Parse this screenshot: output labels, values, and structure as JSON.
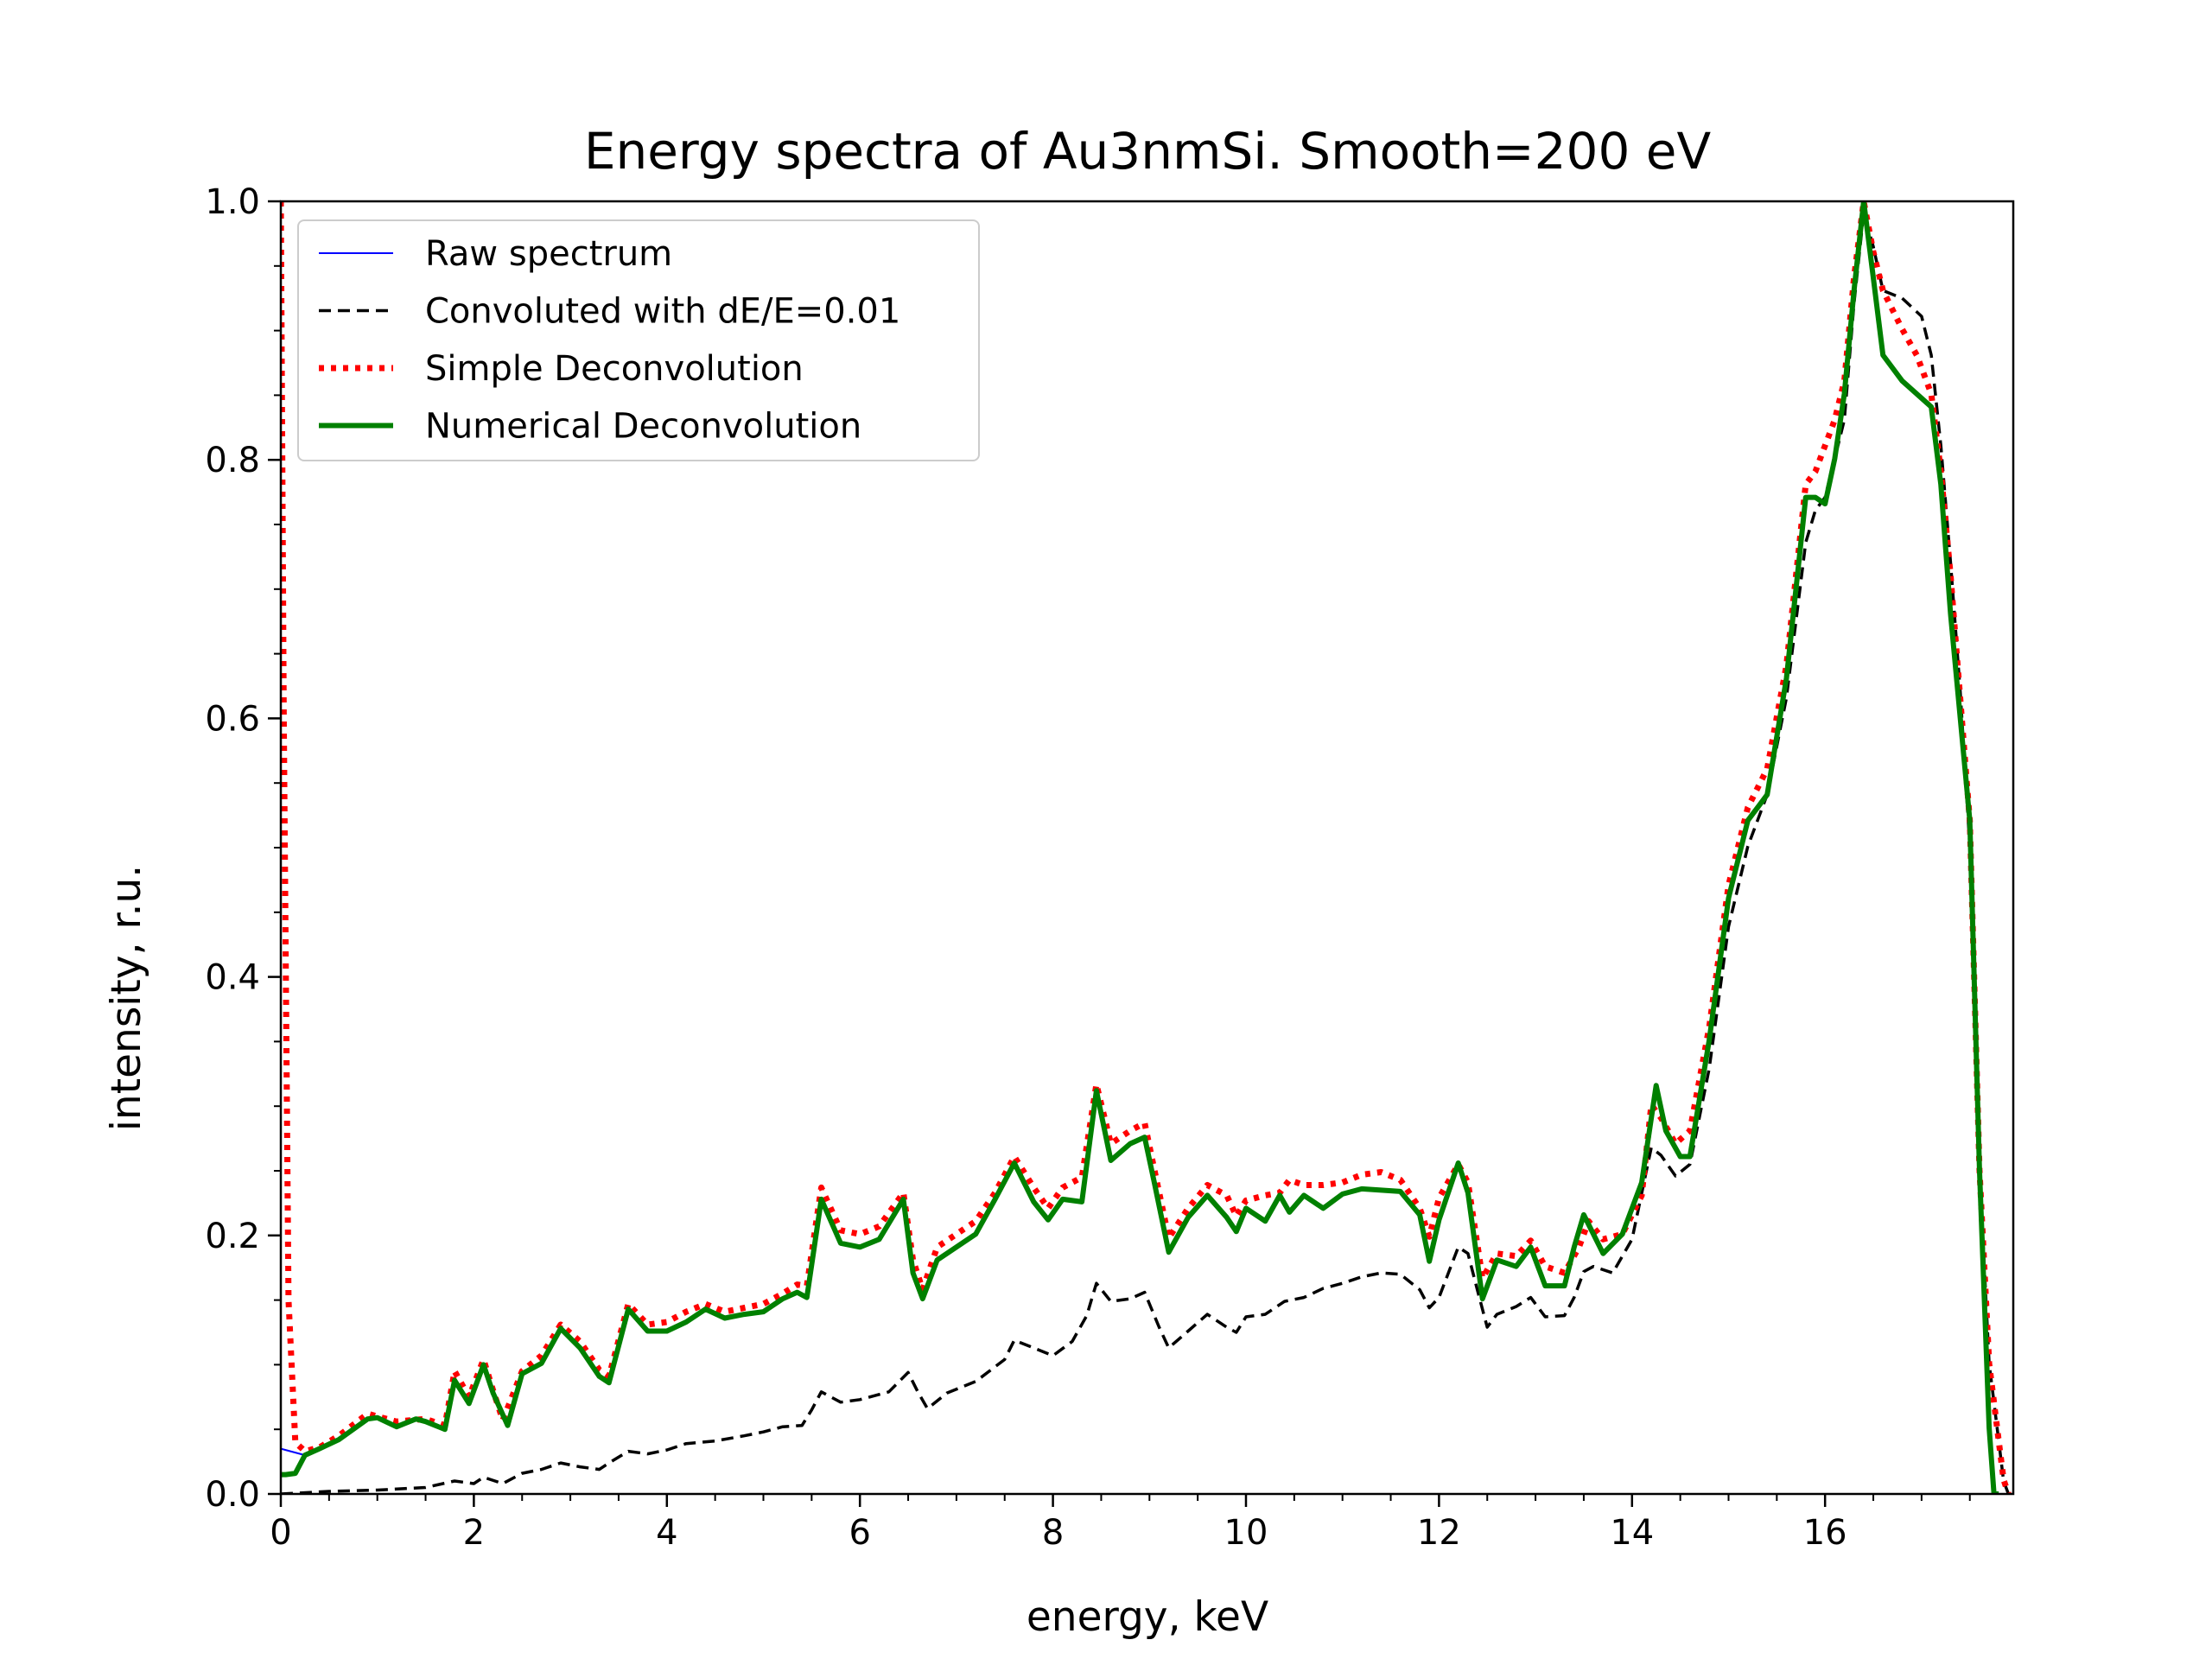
{
  "chart_data": {
    "type": "line",
    "title": "Energy spectra of Au3nmSi. Smooth=200 eV",
    "xlabel": "energy, keV",
    "ylabel": "intensity, r.u.",
    "xlim": [
      0,
      17.95
    ],
    "ylim": [
      0,
      1.0
    ],
    "xticks": [
      0,
      2,
      4,
      6,
      8,
      10,
      12,
      14,
      16
    ],
    "xtick_labels": [
      "0",
      "2",
      "4",
      "6",
      "8",
      "10",
      "12",
      "14",
      "16"
    ],
    "yticks": [
      0.0,
      0.2,
      0.4,
      0.6,
      0.8,
      1.0
    ],
    "ytick_labels": [
      "0.0",
      "0.2",
      "0.4",
      "0.6",
      "0.8",
      "1.0"
    ],
    "grid": false,
    "legend_position": "top-left",
    "colors": {
      "raw": "#0000ff",
      "convoluted": "#000000",
      "simple": "#ff0000",
      "numerical": "#008000"
    },
    "series": [
      {
        "name": "Raw spectrum",
        "style": "solid-thin",
        "color": "#0000ff",
        "x": [
          0,
          0.05,
          0.15,
          0.25
        ],
        "y": [
          0.035,
          0.034,
          0.032,
          0.03
        ]
      },
      {
        "name": "Convoluted with dE/E=0.01",
        "style": "dashed",
        "color": "#000000",
        "x": [
          0,
          0.5,
          1.0,
          1.5,
          1.8,
          2.0,
          2.1,
          2.3,
          2.5,
          2.7,
          2.9,
          3.1,
          3.3,
          3.4,
          3.6,
          3.8,
          4.0,
          4.2,
          4.5,
          4.8,
          5.0,
          5.2,
          5.4,
          5.5,
          5.6,
          5.8,
          6.0,
          6.3,
          6.5,
          6.6,
          6.7,
          6.9,
          7.2,
          7.5,
          7.6,
          7.8,
          8.0,
          8.2,
          8.35,
          8.45,
          8.6,
          8.8,
          8.95,
          9.1,
          9.2,
          9.4,
          9.6,
          9.8,
          9.9,
          10.0,
          10.2,
          10.4,
          10.6,
          10.8,
          11.0,
          11.2,
          11.4,
          11.6,
          11.8,
          11.9,
          12.0,
          12.2,
          12.3,
          12.4,
          12.5,
          12.6,
          12.8,
          12.95,
          13.1,
          13.3,
          13.4,
          13.5,
          13.6,
          13.8,
          14.0,
          14.2,
          14.3,
          14.45,
          14.6,
          14.8,
          15.0,
          15.2,
          15.4,
          15.6,
          15.8,
          15.9,
          16.0,
          16.1,
          16.2,
          16.3,
          16.4,
          16.5,
          16.6,
          16.8,
          17.0,
          17.1,
          17.2,
          17.3,
          17.4,
          17.5,
          17.6,
          17.7,
          17.8,
          17.85,
          17.9
        ],
        "y": [
          0.0,
          0.002,
          0.003,
          0.005,
          0.01,
          0.008,
          0.013,
          0.008,
          0.016,
          0.019,
          0.024,
          0.021,
          0.019,
          0.024,
          0.033,
          0.031,
          0.034,
          0.039,
          0.041,
          0.045,
          0.048,
          0.052,
          0.053,
          0.065,
          0.079,
          0.071,
          0.073,
          0.079,
          0.094,
          0.079,
          0.066,
          0.078,
          0.087,
          0.104,
          0.119,
          0.113,
          0.107,
          0.118,
          0.138,
          0.163,
          0.149,
          0.151,
          0.156,
          0.129,
          0.113,
          0.126,
          0.139,
          0.129,
          0.125,
          0.137,
          0.139,
          0.149,
          0.152,
          0.159,
          0.163,
          0.168,
          0.171,
          0.17,
          0.158,
          0.144,
          0.152,
          0.191,
          0.186,
          0.157,
          0.129,
          0.139,
          0.145,
          0.152,
          0.137,
          0.138,
          0.152,
          0.172,
          0.176,
          0.171,
          0.197,
          0.268,
          0.262,
          0.246,
          0.255,
          0.329,
          0.439,
          0.501,
          0.541,
          0.616,
          0.736,
          0.761,
          0.771,
          0.801,
          0.831,
          0.921,
          0.991,
          0.965,
          0.931,
          0.925,
          0.911,
          0.881,
          0.811,
          0.721,
          0.621,
          0.501,
          0.251,
          0.101,
          0.041,
          0.01,
          0.0
        ]
      },
      {
        "name": "Simple Deconvolution",
        "style": "dotted",
        "color": "#ff0000",
        "x": [
          0.0,
          0.03,
          0.08,
          0.15,
          0.25,
          0.4,
          0.6,
          0.9,
          1.2,
          1.5,
          1.7,
          1.8,
          1.95,
          2.1,
          2.2,
          2.3,
          2.5,
          2.7,
          2.9,
          3.1,
          3.3,
          3.4,
          3.6,
          3.8,
          4.0,
          4.2,
          4.4,
          4.6,
          4.8,
          5.0,
          5.2,
          5.35,
          5.45,
          5.6,
          5.8,
          6.0,
          6.2,
          6.45,
          6.55,
          6.65,
          6.8,
          7.0,
          7.2,
          7.4,
          7.6,
          7.8,
          7.95,
          8.1,
          8.3,
          8.45,
          8.6,
          8.8,
          8.95,
          9.05,
          9.2,
          9.4,
          9.6,
          9.8,
          9.9,
          10.0,
          10.2,
          10.35,
          10.45,
          10.6,
          10.8,
          11.0,
          11.2,
          11.4,
          11.6,
          11.8,
          11.9,
          12.0,
          12.2,
          12.3,
          12.45,
          12.6,
          12.8,
          12.95,
          13.1,
          13.3,
          13.45,
          13.55,
          13.7,
          13.9,
          14.1,
          14.2,
          14.3,
          14.45,
          14.6,
          14.8,
          15.0,
          15.2,
          15.4,
          15.6,
          15.8,
          15.9,
          16.0,
          16.1,
          16.2,
          16.3,
          16.4,
          16.5,
          16.6,
          16.8,
          16.95,
          17.1,
          17.2,
          17.3,
          17.5,
          17.6,
          17.7,
          17.8,
          17.85,
          17.9
        ],
        "y": [
          1.0,
          0.6,
          0.15,
          0.04,
          0.033,
          0.036,
          0.045,
          0.062,
          0.056,
          0.058,
          0.053,
          0.095,
          0.075,
          0.104,
          0.08,
          0.057,
          0.095,
          0.107,
          0.131,
          0.118,
          0.096,
          0.091,
          0.147,
          0.131,
          0.133,
          0.141,
          0.147,
          0.141,
          0.144,
          0.147,
          0.155,
          0.162,
          0.161,
          0.237,
          0.204,
          0.201,
          0.207,
          0.233,
          0.181,
          0.158,
          0.191,
          0.201,
          0.211,
          0.233,
          0.261,
          0.237,
          0.221,
          0.237,
          0.245,
          0.317,
          0.271,
          0.281,
          0.287,
          0.251,
          0.198,
          0.221,
          0.239,
          0.231,
          0.215,
          0.227,
          0.231,
          0.233,
          0.243,
          0.239,
          0.239,
          0.241,
          0.247,
          0.249,
          0.243,
          0.221,
          0.199,
          0.229,
          0.255,
          0.241,
          0.167,
          0.186,
          0.184,
          0.196,
          0.176,
          0.171,
          0.191,
          0.211,
          0.197,
          0.201,
          0.231,
          0.301,
          0.291,
          0.271,
          0.281,
          0.361,
          0.471,
          0.531,
          0.561,
          0.641,
          0.781,
          0.791,
          0.811,
          0.831,
          0.861,
          0.941,
          1.0,
          0.961,
          0.931,
          0.901,
          0.881,
          0.851,
          0.791,
          0.711,
          0.521,
          0.251,
          0.101,
          0.041,
          0.011,
          0.0
        ]
      },
      {
        "name": "Numerical Deconvolution",
        "style": "solid-thick",
        "color": "#008000",
        "x": [
          0.0,
          0.05,
          0.15,
          0.25,
          0.4,
          0.6,
          0.9,
          1.0,
          1.2,
          1.4,
          1.5,
          1.6,
          1.7,
          1.8,
          1.95,
          2.1,
          2.2,
          2.35,
          2.5,
          2.7,
          2.9,
          3.1,
          3.3,
          3.4,
          3.6,
          3.8,
          4.0,
          4.2,
          4.4,
          4.6,
          4.8,
          5.0,
          5.2,
          5.35,
          5.45,
          5.6,
          5.8,
          6.0,
          6.2,
          6.45,
          6.55,
          6.65,
          6.8,
          7.0,
          7.2,
          7.4,
          7.6,
          7.8,
          7.95,
          8.1,
          8.3,
          8.45,
          8.6,
          8.8,
          8.95,
          9.05,
          9.2,
          9.4,
          9.6,
          9.8,
          9.9,
          10.0,
          10.2,
          10.35,
          10.45,
          10.6,
          10.8,
          11.0,
          11.2,
          11.4,
          11.6,
          11.8,
          11.9,
          12.0,
          12.2,
          12.3,
          12.45,
          12.6,
          12.8,
          12.95,
          13.1,
          13.3,
          13.4,
          13.5,
          13.7,
          13.9,
          14.1,
          14.25,
          14.35,
          14.5,
          14.6,
          14.8,
          15.0,
          15.2,
          15.4,
          15.6,
          15.8,
          15.9,
          16.0,
          16.1,
          16.2,
          16.3,
          16.4,
          16.5,
          16.6,
          16.8,
          16.95,
          17.1,
          17.2,
          17.3,
          17.5,
          17.6,
          17.7,
          17.75,
          17.8
        ],
        "y": [
          0.015,
          0.015,
          0.016,
          0.03,
          0.035,
          0.042,
          0.058,
          0.059,
          0.052,
          0.058,
          0.056,
          0.053,
          0.05,
          0.088,
          0.07,
          0.1,
          0.078,
          0.053,
          0.093,
          0.101,
          0.128,
          0.113,
          0.091,
          0.086,
          0.143,
          0.126,
          0.126,
          0.133,
          0.143,
          0.136,
          0.139,
          0.141,
          0.151,
          0.156,
          0.152,
          0.228,
          0.194,
          0.191,
          0.197,
          0.228,
          0.171,
          0.151,
          0.181,
          0.191,
          0.201,
          0.228,
          0.256,
          0.226,
          0.212,
          0.228,
          0.226,
          0.312,
          0.258,
          0.271,
          0.276,
          0.241,
          0.187,
          0.214,
          0.231,
          0.214,
          0.203,
          0.221,
          0.211,
          0.231,
          0.218,
          0.231,
          0.221,
          0.232,
          0.236,
          0.235,
          0.234,
          0.216,
          0.18,
          0.212,
          0.256,
          0.233,
          0.151,
          0.181,
          0.176,
          0.191,
          0.161,
          0.161,
          0.191,
          0.216,
          0.186,
          0.201,
          0.241,
          0.316,
          0.281,
          0.261,
          0.261,
          0.351,
          0.461,
          0.521,
          0.541,
          0.631,
          0.771,
          0.771,
          0.766,
          0.801,
          0.851,
          0.931,
          1.0,
          0.941,
          0.881,
          0.861,
          0.851,
          0.841,
          0.781,
          0.681,
          0.521,
          0.251,
          0.051,
          0.0,
          0.0
        ]
      }
    ]
  }
}
